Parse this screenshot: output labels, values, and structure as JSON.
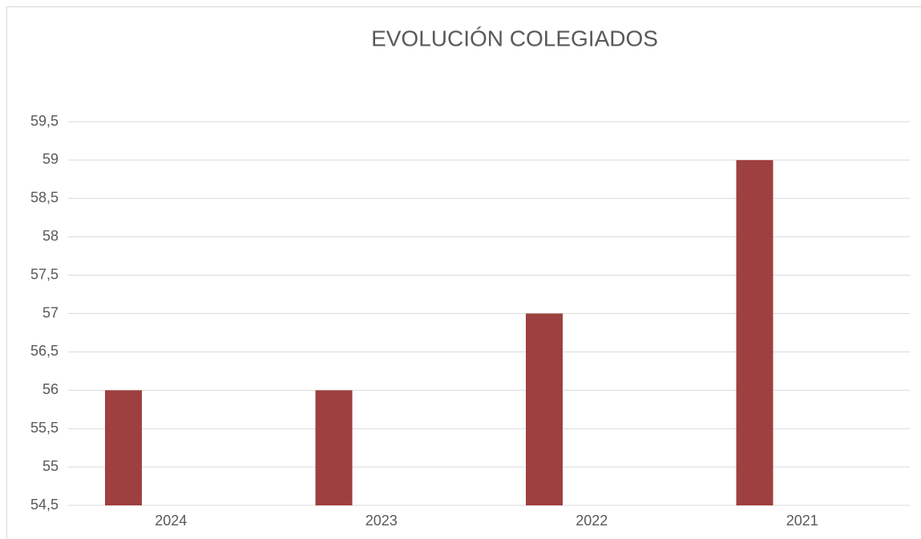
{
  "chart_data": {
    "type": "bar",
    "title": "EVOLUCIÓN COLEGIADOS",
    "categories": [
      "2024",
      "2023",
      "2022",
      "2021"
    ],
    "values": [
      56,
      56,
      57,
      59
    ],
    "color": "#9e403f",
    "ylim": [
      54.5,
      59.5
    ],
    "yticks": [
      {
        "value": 54.5,
        "label": "54,5"
      },
      55,
      {
        "value": 55.5,
        "label": "55,5"
      },
      56,
      {
        "value": 56.5,
        "label": "56,5"
      },
      57,
      {
        "value": 57.5,
        "label": "57,5"
      },
      58,
      {
        "value": 58.5,
        "label": "58,5"
      },
      59,
      {
        "value": 59.5,
        "label": "59,5"
      }
    ],
    "grid": true
  }
}
